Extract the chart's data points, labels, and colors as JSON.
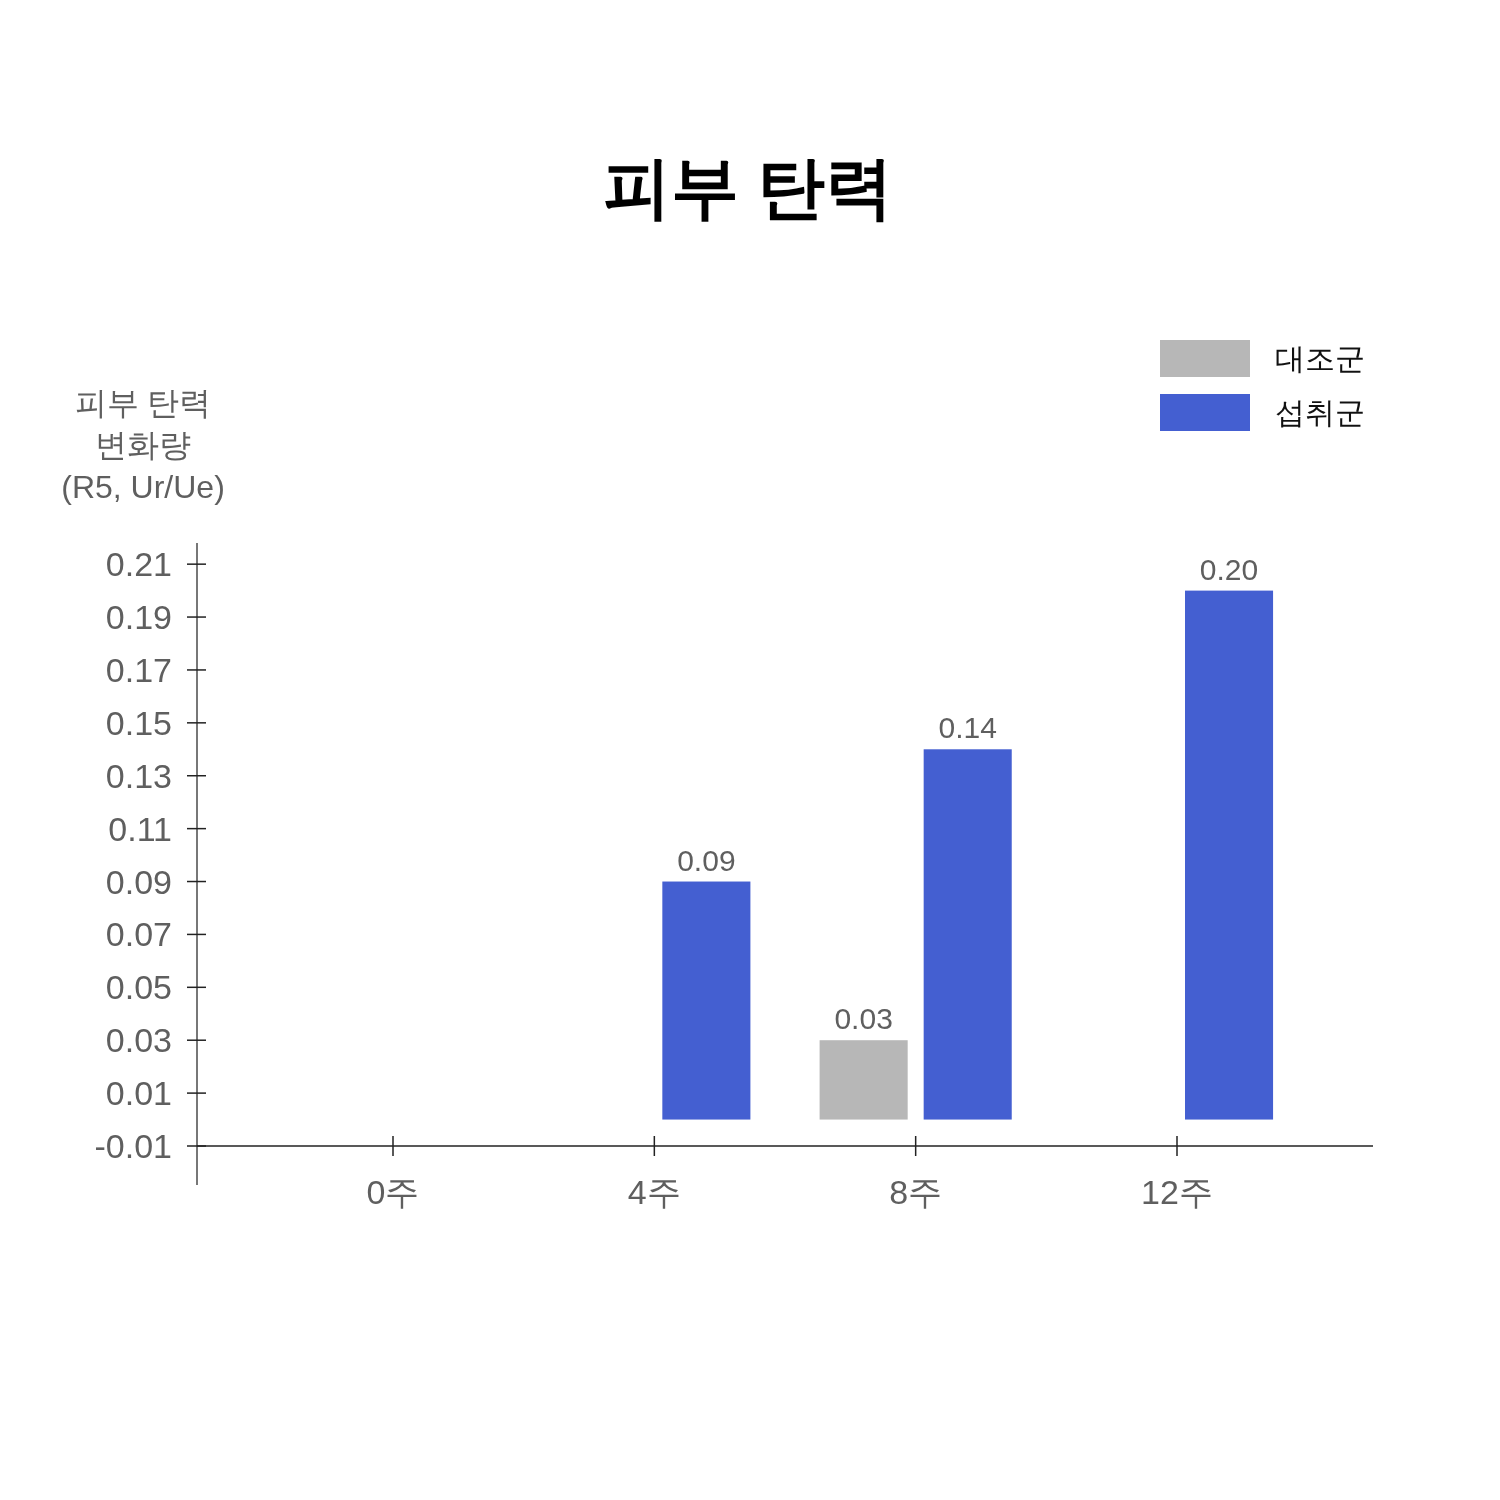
{
  "chart_data": {
    "type": "bar",
    "title": "피부 탄력",
    "ylabel": "피부 탄력\n변화량\n(R5, Ur/Ue)",
    "categories": [
      "0주",
      "4주",
      "8주",
      "12주"
    ],
    "series": [
      {
        "name": "대조군",
        "color": "#b7b7b7",
        "values": [
          null,
          null,
          0.03,
          null
        ],
        "value_labels": [
          null,
          null,
          "0.03",
          null
        ]
      },
      {
        "name": "섭취군",
        "color": "#445fd1",
        "values": [
          null,
          0.09,
          0.14,
          0.2
        ],
        "value_labels": [
          null,
          "0.09",
          "0.14",
          "0.20"
        ]
      }
    ],
    "ylim": [
      -0.01,
      0.218
    ],
    "yticks": [
      -0.01,
      0.01,
      0.03,
      0.05,
      0.07,
      0.09,
      0.11,
      0.13,
      0.15,
      0.17,
      0.19,
      0.21
    ],
    "legend": "top right"
  }
}
